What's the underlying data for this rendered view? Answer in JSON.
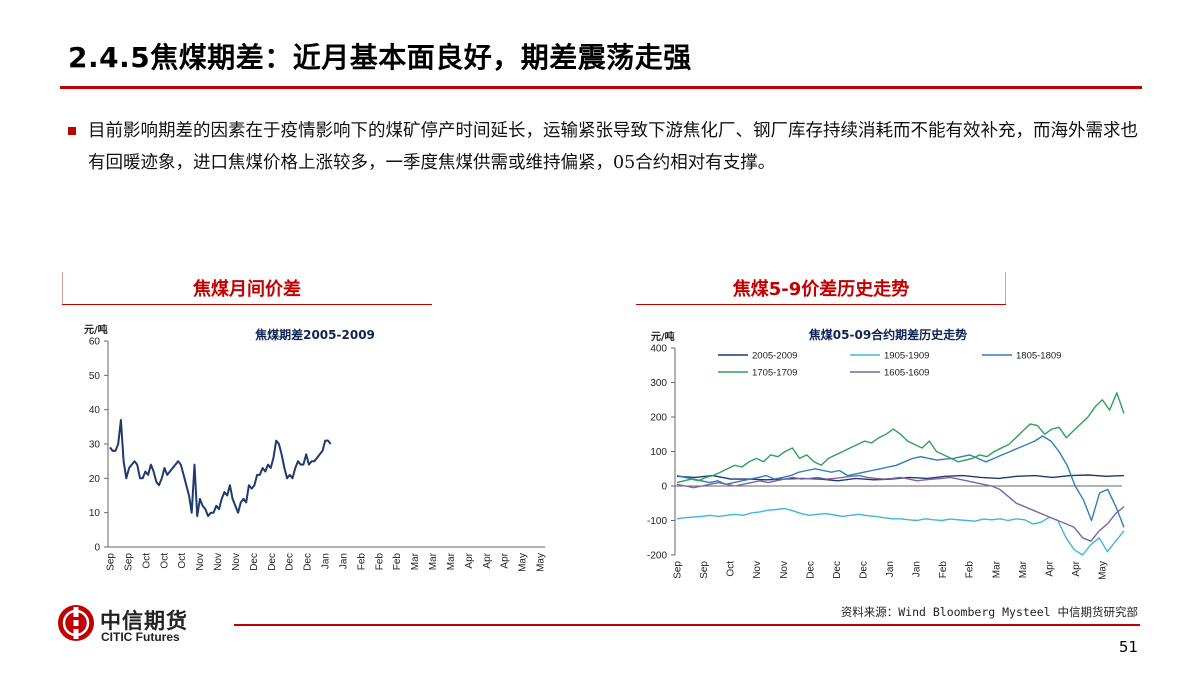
{
  "page": {
    "title": "2.4.5焦煤期差：近月基本面良好，期差震荡走强",
    "bullet": "目前影响期差的因素在于疫情影响下的煤矿停产时间延长，运输紧张导致下游焦化厂、钢厂库存持续消耗而不能有效补充，而海外需求也有回暖迹象，进口焦煤价格上涨较多，一季度焦煤供需或维持偏紧，05合约相对有支撑。",
    "source": "资料来源：Wind Bloomberg Mysteel 中信期货研究部",
    "page_number": "51",
    "logo_cn": "中信期货",
    "logo_en": "CITIC Futures",
    "panel_left_title": "焦煤月间价差",
    "panel_right_title": "焦煤5-9价差历史走势"
  },
  "colors": {
    "accent": "#c00000"
  },
  "chart_data": [
    {
      "type": "line",
      "title": "焦煤期差2005-2009",
      "ylabel": "元/吨",
      "ylim": [
        0,
        60
      ],
      "yticks": [
        "0",
        "10",
        "20",
        "30",
        "40",
        "50",
        "60"
      ],
      "tick_labels": [
        "Sep",
        "Sep",
        "Oct",
        "Oct",
        "Oct",
        "Nov",
        "Nov",
        "Nov",
        "Dec",
        "Dec",
        "Dec",
        "Dec",
        "Jan",
        "Jan",
        "Feb",
        "Feb",
        "Feb",
        "Mar",
        "Mar",
        "Mar",
        "Apr",
        "Apr",
        "Apr",
        "May",
        "May"
      ],
      "series": [
        {
          "color": "#1f3a6e",
          "values": [
            29,
            28,
            28,
            30,
            37,
            25,
            20,
            23,
            24,
            25,
            24,
            20,
            20,
            22,
            21,
            24,
            22,
            19,
            18,
            20,
            23,
            21,
            22,
            23,
            24,
            25,
            24,
            21,
            18,
            15,
            10,
            24,
            9,
            14,
            12,
            11,
            9,
            10,
            10,
            12,
            11,
            14,
            16,
            15,
            18,
            14,
            12,
            10,
            13,
            14,
            13,
            18,
            17,
            18,
            21,
            21,
            23,
            22,
            24,
            23,
            26,
            31,
            30,
            27,
            23,
            20,
            21,
            20,
            23,
            25,
            24,
            24,
            27,
            24,
            25,
            25,
            26,
            27,
            28,
            31,
            31,
            30
          ]
        }
      ]
    },
    {
      "type": "line",
      "title": "焦煤05-09合约期差历史走势",
      "ylabel": "元/吨",
      "ylim": [
        -200,
        400
      ],
      "yticks": [
        "-200",
        "-100",
        "0",
        "100",
        "200",
        "300",
        "400"
      ],
      "tick_labels": [
        "Sep",
        "Sep",
        "Oct",
        "Nov",
        "Nov",
        "Dec",
        "Dec",
        "Dec",
        "Jan",
        "Jan",
        "Feb",
        "Feb",
        "Mar",
        "Mar",
        "Apr",
        "Apr",
        "May"
      ],
      "legend": [
        "2005-2009",
        "1905-1909",
        "1805-1809",
        "1705-1709",
        "1605-1609"
      ],
      "series": [
        {
          "name": "2005-2009",
          "color": "#1f3a6e",
          "values": [
            28,
            25,
            30,
            20,
            20,
            18,
            20,
            22,
            20,
            15,
            22,
            18,
            20,
            25,
            22,
            28,
            30,
            25,
            22,
            28,
            30,
            25,
            30,
            32,
            28,
            30
          ]
        },
        {
          "name": "1905-1909",
          "color": "#3fb7d9",
          "values": [
            -95,
            -92,
            -90,
            -88,
            -85,
            -88,
            -85,
            -82,
            -85,
            -78,
            -75,
            -70,
            -68,
            -65,
            -72,
            -80,
            -85,
            -82,
            -80,
            -84,
            -88,
            -85,
            -82,
            -86,
            -88,
            -92,
            -95,
            -95,
            -98,
            -100,
            -95,
            -98,
            -100,
            -96,
            -98,
            -100,
            -102,
            -96,
            -98,
            -95,
            -100,
            -95,
            -98,
            -110,
            -105,
            -90,
            -100,
            -150,
            -185,
            -200,
            -170,
            -150,
            -190,
            -160,
            -130
          ]
        },
        {
          "name": "1805-1809",
          "color": "#2e7fb8",
          "values": [
            30,
            25,
            20,
            15,
            10,
            15,
            5,
            10,
            15,
            20,
            25,
            30,
            20,
            25,
            30,
            40,
            45,
            50,
            45,
            40,
            45,
            30,
            35,
            40,
            45,
            50,
            55,
            60,
            70,
            80,
            85,
            80,
            75,
            78,
            80,
            85,
            90,
            80,
            70,
            80,
            90,
            100,
            110,
            120,
            130,
            145,
            130,
            100,
            60,
            0,
            -40,
            -100,
            -20,
            -10,
            -60,
            -120
          ]
        },
        {
          "name": "1705-1709",
          "color": "#2fa05a",
          "values": [
            10,
            15,
            20,
            15,
            25,
            30,
            40,
            50,
            60,
            55,
            70,
            80,
            70,
            90,
            85,
            100,
            110,
            80,
            90,
            70,
            60,
            80,
            90,
            100,
            110,
            120,
            130,
            125,
            140,
            150,
            165,
            150,
            130,
            120,
            110,
            130,
            100,
            90,
            80,
            70,
            75,
            80,
            90,
            85,
            100,
            110,
            120,
            140,
            160,
            180,
            175,
            150,
            165,
            170,
            140,
            160,
            180,
            200,
            230,
            250,
            220,
            270,
            210
          ]
        },
        {
          "name": "1605-1609",
          "color": "#7b65a6",
          "values": [
            5,
            0,
            -5,
            0,
            5,
            10,
            5,
            0,
            5,
            10,
            15,
            10,
            15,
            20,
            25,
            20,
            22,
            25,
            20,
            22,
            25,
            28,
            30,
            25,
            22,
            20,
            22,
            25,
            20,
            15,
            18,
            20,
            22,
            25,
            20,
            15,
            10,
            5,
            0,
            -10,
            -30,
            -50,
            -60,
            -70,
            -80,
            -90,
            -100,
            -110,
            -120,
            -150,
            -160,
            -130,
            -110,
            -80,
            -60
          ]
        }
      ]
    }
  ]
}
